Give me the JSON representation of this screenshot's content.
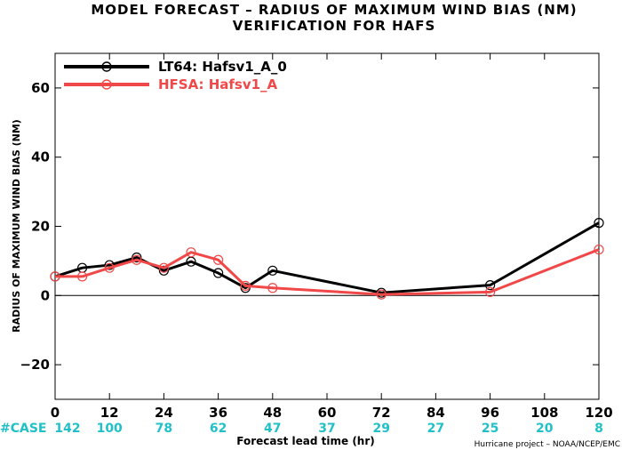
{
  "chart_data": {
    "type": "line",
    "title_line1": "MODEL FORECAST – RADIUS OF MAXIMUM WIND BIAS (NM)",
    "title_line2": "VERIFICATION FOR HAFS",
    "xlabel": "Forecast lead time (hr)",
    "ylabel": "RADIUS OF MAXIMUM WIND BIAS (NM)",
    "xlim": [
      0,
      120
    ],
    "ylim": [
      -30,
      70
    ],
    "x_ticks": [
      0,
      12,
      24,
      36,
      48,
      60,
      72,
      84,
      96,
      108,
      120
    ],
    "y_ticks": [
      -20,
      0,
      20,
      40,
      60
    ],
    "grid": false,
    "zero_line": true,
    "legend_position": "top-left",
    "series": [
      {
        "name": "LT64: Hafsv1_A_0",
        "color": "#000000",
        "x": [
          0,
          6,
          12,
          18,
          24,
          30,
          36,
          42,
          48,
          72,
          96,
          120
        ],
        "y": [
          5.5,
          8,
          8.8,
          11,
          7.2,
          9.8,
          6.5,
          2.2,
          7.2,
          0.8,
          3,
          21
        ]
      },
      {
        "name": "HFSA: Hafsv1_A",
        "color": "#f04848",
        "x": [
          0,
          6,
          12,
          18,
          24,
          30,
          36,
          42,
          48,
          72,
          96,
          120
        ],
        "y": [
          5.5,
          5.5,
          8,
          10.3,
          8,
          12.5,
          10.3,
          2.8,
          2.2,
          0.3,
          1,
          13.3
        ]
      }
    ],
    "case_label": "#CASE",
    "case_counts": [
      "142",
      "100",
      "78",
      "62",
      "47",
      "37",
      "29",
      "27",
      "25",
      "20",
      "8"
    ],
    "case_color": "#20c0c8",
    "credit": "Hurricane project – NOAA/NCEP/EMC"
  }
}
